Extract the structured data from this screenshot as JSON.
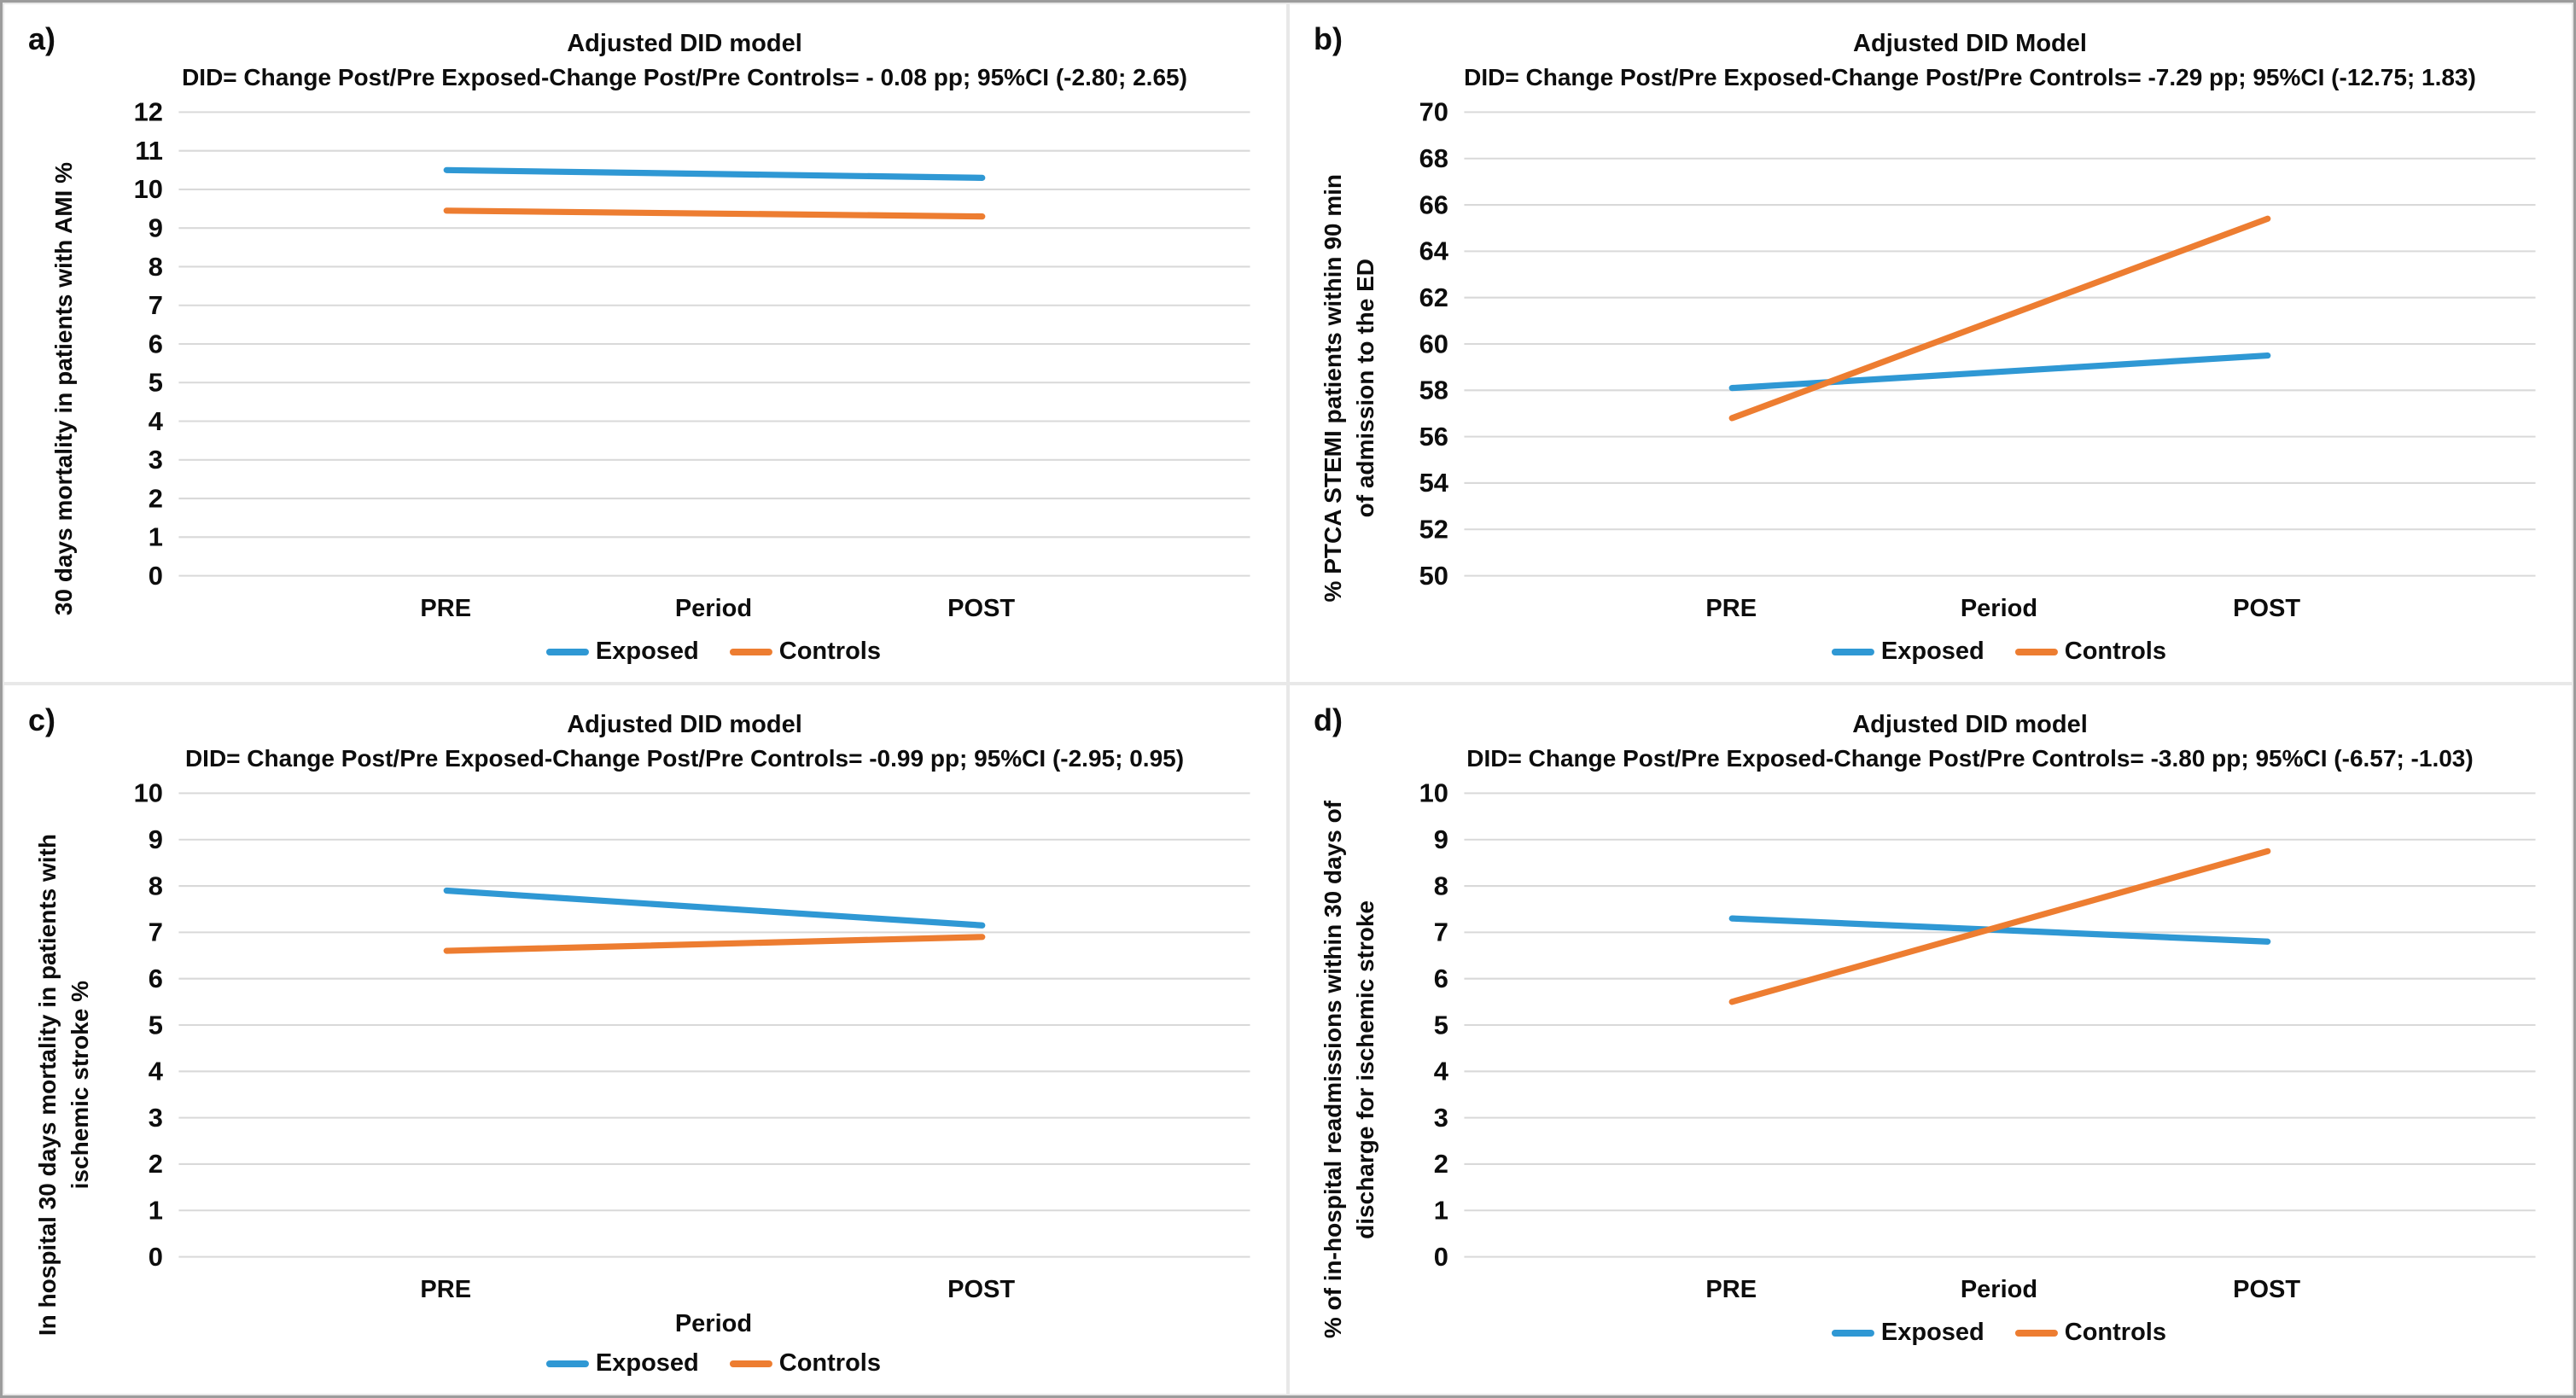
{
  "colors": {
    "exposed": "#2F98D4",
    "controls": "#ED7D31",
    "gridline": "#D9D9D9",
    "text": "#0D0D0D"
  },
  "chart_data": [
    {
      "id": "a",
      "type": "line",
      "panel_letter": "a)",
      "title": "Adjusted DID model",
      "subtitle": "DID= Change Post/Pre Exposed-Change Post/Pre Controls= - 0.08 pp; 95%CI (-2.80; 2.65)",
      "ylabel_lines": [
        "30 days mortality in patients with AMI %"
      ],
      "xlabel": "Period",
      "categories": [
        "PRE",
        "POST"
      ],
      "ylim": [
        0,
        12
      ],
      "ytick_step": 1,
      "grid": true,
      "legend_position": "bottom",
      "series": [
        {
          "name": "Exposed",
          "values": [
            10.5,
            10.3
          ]
        },
        {
          "name": "Controls",
          "values": [
            9.45,
            9.3
          ]
        }
      ]
    },
    {
      "id": "b",
      "type": "line",
      "panel_letter": "b)",
      "title": "Adjusted DID Model",
      "subtitle": "DID= Change Post/Pre Exposed-Change Post/Pre Controls= -7.29 pp; 95%CI (-12.75; 1.83)",
      "ylabel_lines": [
        "% PTCA STEMI patients within 90 min",
        "of admission to the ED"
      ],
      "xlabel": "Period",
      "categories": [
        "PRE",
        "POST"
      ],
      "ylim": [
        50,
        70
      ],
      "ytick_step": 2,
      "grid": true,
      "legend_position": "bottom",
      "series": [
        {
          "name": "Exposed",
          "values": [
            58.1,
            59.5
          ]
        },
        {
          "name": "Controls",
          "values": [
            56.8,
            65.4
          ]
        }
      ]
    },
    {
      "id": "c",
      "type": "line",
      "panel_letter": "c)",
      "title": "Adjusted DID model",
      "subtitle": "DID= Change Post/Pre Exposed-Change Post/Pre Controls= -0.99 pp; 95%CI (-2.95; 0.95)",
      "ylabel_lines": [
        "In hospital 30 days mortality in patients with",
        "ischemic stroke %"
      ],
      "xlabel": "Period",
      "categories": [
        "PRE",
        "POST"
      ],
      "ylim": [
        0,
        10
      ],
      "ytick_step": 1,
      "grid": true,
      "legend_position": "bottom",
      "series": [
        {
          "name": "Exposed",
          "values": [
            7.9,
            7.15
          ]
        },
        {
          "name": "Controls",
          "values": [
            6.6,
            6.9
          ]
        }
      ]
    },
    {
      "id": "d",
      "type": "line",
      "panel_letter": "d)",
      "title": "Adjusted DID model",
      "subtitle": "DID= Change Post/Pre Exposed-Change Post/Pre Controls= -3.80 pp; 95%CI (-6.57; -1.03)",
      "ylabel_lines": [
        "% of in-hospital readmissions within 30 days of",
        "discharge for ischemic stroke"
      ],
      "xlabel": "Period",
      "categories": [
        "PRE",
        "POST"
      ],
      "ylim": [
        0,
        10
      ],
      "ytick_step": 1,
      "grid": true,
      "legend_position": "bottom",
      "series": [
        {
          "name": "Exposed",
          "values": [
            7.3,
            6.8
          ]
        },
        {
          "name": "Controls",
          "values": [
            5.5,
            8.75
          ]
        }
      ]
    }
  ]
}
